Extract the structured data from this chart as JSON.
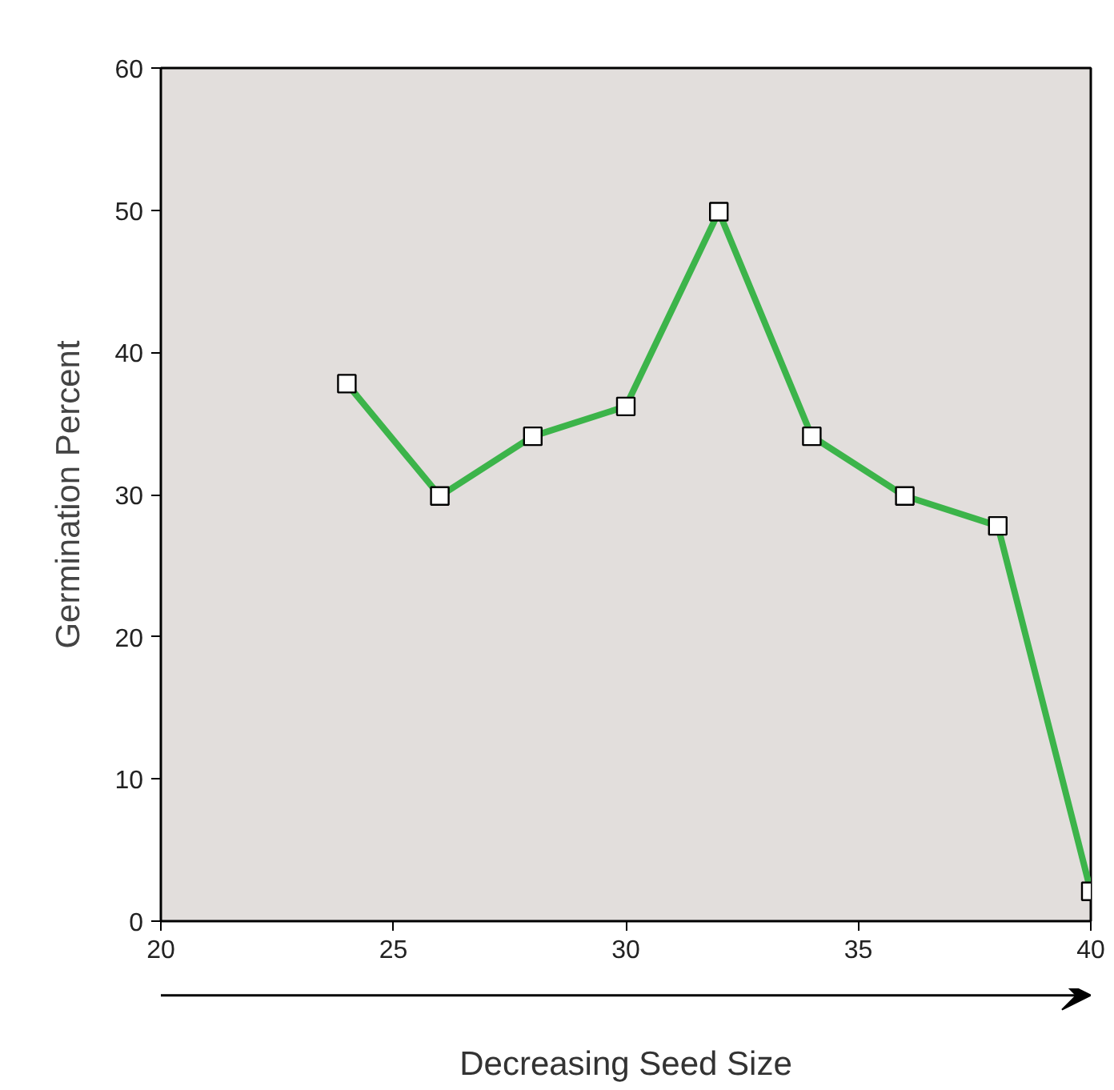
{
  "chart_data": {
    "type": "line",
    "xlabel": "Decreasing Seed Size",
    "ylabel": "Germination Percent",
    "x": [
      24,
      26,
      28,
      30,
      32,
      34,
      36,
      38,
      40
    ],
    "series": [
      {
        "color": "#3cb44a",
        "values": [
          37.8,
          29.9,
          34.1,
          36.2,
          49.9,
          34.1,
          29.9,
          27.8,
          2.1
        ]
      }
    ],
    "xlim": [
      20,
      40
    ],
    "xticks": [
      20,
      25,
      30,
      35,
      40
    ],
    "ylim": [
      0,
      60
    ],
    "yticks": [
      0,
      10,
      20,
      30,
      40,
      50,
      60
    ],
    "grid": false,
    "marker": "square",
    "line_style": "solid"
  }
}
